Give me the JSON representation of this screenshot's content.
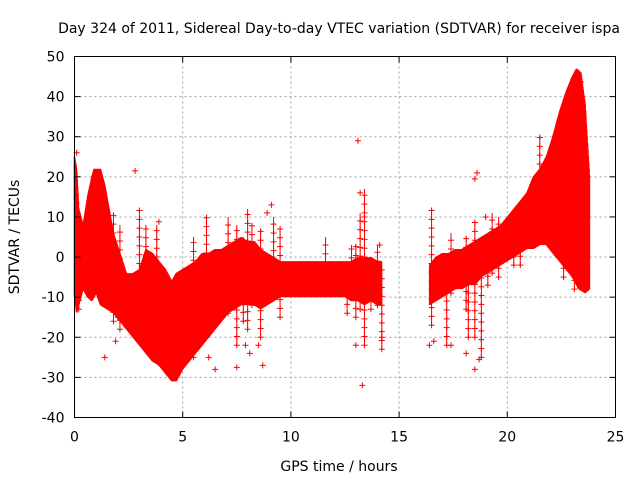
{
  "chart_data": {
    "type": "scatter",
    "title": "Day 324 of 2011, Sidereal Day-to-day VTEC variation (SDTVAR) for receiver ispa",
    "xlabel": "GPS time / hours",
    "ylabel": "SDTVAR / TECUs",
    "xlim": [
      0,
      25
    ],
    "ylim": [
      -40,
      50
    ],
    "xticks": [
      0,
      5,
      10,
      15,
      20,
      25
    ],
    "yticks": [
      -40,
      -30,
      -20,
      -10,
      0,
      10,
      20,
      30,
      40,
      50
    ],
    "grid": true,
    "marker": "+",
    "color": "#ff0000",
    "series": [
      {
        "name": "main-band-low",
        "points": [
          [
            0.0,
            -10
          ],
          [
            0.1,
            -14
          ],
          [
            0.2,
            -12
          ],
          [
            0.4,
            -8
          ],
          [
            0.6,
            -10
          ],
          [
            0.8,
            -11
          ],
          [
            1.0,
            -9
          ],
          [
            1.2,
            -12
          ],
          [
            1.5,
            -13
          ],
          [
            1.8,
            -14
          ],
          [
            2.1,
            -16
          ],
          [
            2.4,
            -18
          ],
          [
            2.7,
            -20
          ],
          [
            3.0,
            -22
          ],
          [
            3.3,
            -24
          ],
          [
            3.6,
            -26
          ],
          [
            3.9,
            -27
          ],
          [
            4.2,
            -29
          ],
          [
            4.5,
            -31
          ],
          [
            4.7,
            -31
          ],
          [
            5.0,
            -28
          ],
          [
            5.3,
            -26
          ],
          [
            5.6,
            -24
          ],
          [
            5.9,
            -22
          ],
          [
            6.2,
            -20
          ],
          [
            6.5,
            -18
          ],
          [
            6.8,
            -16
          ],
          [
            7.1,
            -14
          ],
          [
            7.4,
            -13
          ],
          [
            7.7,
            -12
          ],
          [
            8.0,
            -12
          ],
          [
            8.3,
            -12
          ],
          [
            8.6,
            -13
          ],
          [
            8.9,
            -12
          ],
          [
            9.2,
            -11
          ],
          [
            9.5,
            -10
          ],
          [
            9.8,
            -10
          ],
          [
            10.1,
            -10
          ],
          [
            10.4,
            -10
          ],
          [
            10.7,
            -10
          ],
          [
            11.0,
            -10
          ],
          [
            11.3,
            -10
          ],
          [
            11.6,
            -10
          ],
          [
            11.9,
            -10
          ],
          [
            12.2,
            -10
          ],
          [
            12.5,
            -10
          ],
          [
            12.8,
            -11
          ],
          [
            13.1,
            -11
          ],
          [
            13.4,
            -12
          ],
          [
            13.7,
            -11
          ],
          [
            14.0,
            -12
          ],
          [
            14.2,
            -12
          ],
          [
            16.4,
            -12
          ],
          [
            16.7,
            -11
          ],
          [
            17.0,
            -10
          ],
          [
            17.3,
            -9
          ],
          [
            17.6,
            -8
          ],
          [
            17.9,
            -8
          ],
          [
            18.2,
            -7
          ],
          [
            18.5,
            -7
          ],
          [
            18.8,
            -5
          ],
          [
            19.1,
            -4
          ],
          [
            19.4,
            -3
          ],
          [
            19.7,
            -2
          ],
          [
            20.0,
            -1
          ],
          [
            20.3,
            0
          ],
          [
            20.6,
            1
          ],
          [
            20.9,
            2
          ],
          [
            21.2,
            2
          ],
          [
            21.5,
            3
          ],
          [
            21.8,
            3
          ],
          [
            22.1,
            1
          ],
          [
            22.4,
            -1
          ],
          [
            22.7,
            -3
          ],
          [
            23.0,
            -5
          ],
          [
            23.3,
            -8
          ],
          [
            23.6,
            -9
          ],
          [
            23.8,
            -8
          ]
        ]
      },
      {
        "name": "main-band-high",
        "points": [
          [
            0.0,
            25
          ],
          [
            0.1,
            22
          ],
          [
            0.2,
            12
          ],
          [
            0.4,
            8
          ],
          [
            0.6,
            15
          ],
          [
            0.8,
            20
          ],
          [
            0.9,
            22
          ],
          [
            1.0,
            22
          ],
          [
            1.2,
            22
          ],
          [
            1.4,
            18
          ],
          [
            1.6,
            12
          ],
          [
            1.8,
            6
          ],
          [
            2.1,
            1
          ],
          [
            2.4,
            -4
          ],
          [
            2.7,
            -4
          ],
          [
            3.0,
            -3
          ],
          [
            3.3,
            2
          ],
          [
            3.6,
            1
          ],
          [
            3.9,
            -1
          ],
          [
            4.2,
            -3
          ],
          [
            4.5,
            -6
          ],
          [
            4.7,
            -4
          ],
          [
            5.0,
            -3
          ],
          [
            5.3,
            -2
          ],
          [
            5.6,
            -1
          ],
          [
            5.9,
            1
          ],
          [
            6.2,
            1
          ],
          [
            6.5,
            2
          ],
          [
            6.8,
            2
          ],
          [
            7.1,
            3
          ],
          [
            7.4,
            4
          ],
          [
            7.7,
            5
          ],
          [
            8.0,
            4
          ],
          [
            8.3,
            4
          ],
          [
            8.6,
            2
          ],
          [
            8.9,
            1
          ],
          [
            9.2,
            0
          ],
          [
            9.5,
            -1
          ],
          [
            9.8,
            -1
          ],
          [
            10.1,
            -1
          ],
          [
            10.4,
            -1
          ],
          [
            10.7,
            -1
          ],
          [
            11.0,
            -1
          ],
          [
            11.3,
            -1
          ],
          [
            11.6,
            -1
          ],
          [
            11.9,
            -1
          ],
          [
            12.2,
            -1
          ],
          [
            12.5,
            -1
          ],
          [
            12.8,
            -1
          ],
          [
            13.1,
            0
          ],
          [
            13.4,
            0
          ],
          [
            13.7,
            0
          ],
          [
            14.0,
            -1
          ],
          [
            14.2,
            -1
          ],
          [
            16.4,
            -2
          ],
          [
            16.7,
            0
          ],
          [
            17.0,
            1
          ],
          [
            17.3,
            1
          ],
          [
            17.6,
            2
          ],
          [
            17.9,
            2
          ],
          [
            18.2,
            3
          ],
          [
            18.5,
            4
          ],
          [
            18.8,
            5
          ],
          [
            19.1,
            6
          ],
          [
            19.4,
            7
          ],
          [
            19.7,
            8
          ],
          [
            20.0,
            10
          ],
          [
            20.3,
            12
          ],
          [
            20.6,
            14
          ],
          [
            20.9,
            16
          ],
          [
            21.2,
            20
          ],
          [
            21.5,
            22
          ],
          [
            21.8,
            25
          ],
          [
            22.1,
            30
          ],
          [
            22.4,
            36
          ],
          [
            22.7,
            41
          ],
          [
            23.0,
            45
          ],
          [
            23.2,
            47
          ],
          [
            23.4,
            46
          ],
          [
            23.6,
            38
          ],
          [
            23.8,
            20
          ]
        ]
      }
    ],
    "outliers": [
      [
        0.1,
        26
      ],
      [
        1.4,
        -25
      ],
      [
        1.9,
        -21
      ],
      [
        2.0,
        -15
      ],
      [
        2.8,
        21.5
      ],
      [
        2.9,
        -19
      ],
      [
        3.0,
        -16
      ],
      [
        3.1,
        -10
      ],
      [
        3.9,
        8.8
      ],
      [
        4.0,
        -27
      ],
      [
        4.2,
        -24
      ],
      [
        6.2,
        -25
      ],
      [
        6.5,
        -28
      ],
      [
        7.5,
        -27.5
      ],
      [
        7.9,
        -22
      ],
      [
        8.1,
        -24
      ],
      [
        8.5,
        -22
      ],
      [
        8.7,
        -27
      ],
      [
        8.9,
        11
      ],
      [
        9.1,
        13
      ],
      [
        13.1,
        29
      ],
      [
        13.3,
        -32
      ],
      [
        13.0,
        -22
      ],
      [
        13.2,
        16
      ],
      [
        13.4,
        10
      ],
      [
        14.1,
        3
      ],
      [
        14.2,
        -20
      ],
      [
        16.4,
        -22
      ],
      [
        16.6,
        -21
      ],
      [
        17.4,
        -22
      ],
      [
        18.1,
        -24
      ],
      [
        18.5,
        -28
      ],
      [
        18.6,
        21
      ],
      [
        18.7,
        -25.5
      ],
      [
        18.5,
        19.5
      ],
      [
        19.0,
        10
      ]
    ],
    "whisker_columns": [
      [
        0.2,
        -13,
        7
      ],
      [
        1.8,
        -16,
        11
      ],
      [
        2.1,
        -18,
        8
      ],
      [
        3.0,
        -17,
        12
      ],
      [
        3.3,
        -15,
        8
      ],
      [
        3.8,
        -22,
        8
      ],
      [
        5.5,
        -25,
        5
      ],
      [
        6.1,
        -10,
        10
      ],
      [
        6.3,
        -17,
        1
      ],
      [
        7.1,
        -14,
        10
      ],
      [
        7.5,
        -22,
        8
      ],
      [
        7.8,
        -16,
        5
      ],
      [
        8.0,
        -18,
        12
      ],
      [
        8.2,
        -12,
        8
      ],
      [
        8.6,
        -20,
        7
      ],
      [
        9.2,
        -5,
        10
      ],
      [
        9.5,
        -15,
        7
      ],
      [
        11.6,
        -8,
        5
      ],
      [
        12.6,
        -14,
        -4
      ],
      [
        12.8,
        -9,
        3
      ],
      [
        13.0,
        -15,
        3
      ],
      [
        13.2,
        -13,
        11
      ],
      [
        13.4,
        -22,
        17
      ],
      [
        13.7,
        -13,
        -4
      ],
      [
        14.0,
        -12,
        3
      ],
      [
        14.2,
        -23,
        -3
      ],
      [
        16.5,
        -17,
        12
      ],
      [
        17.2,
        -22,
        0
      ],
      [
        17.4,
        -9,
        6
      ],
      [
        18.1,
        -13,
        5
      ],
      [
        18.2,
        -20,
        -2
      ],
      [
        18.5,
        -20,
        9
      ],
      [
        18.8,
        -25,
        0
      ],
      [
        19.1,
        -7,
        2
      ],
      [
        19.3,
        -4,
        11
      ],
      [
        19.6,
        -5,
        10
      ],
      [
        20.3,
        -2,
        6
      ],
      [
        20.6,
        -2,
        9
      ],
      [
        21.5,
        10,
        30
      ],
      [
        22.4,
        3,
        15
      ],
      [
        22.6,
        -5,
        16
      ],
      [
        23.1,
        -8,
        44
      ],
      [
        23.4,
        -7,
        45
      ]
    ],
    "gap": [
      14.3,
      16.3
    ]
  }
}
